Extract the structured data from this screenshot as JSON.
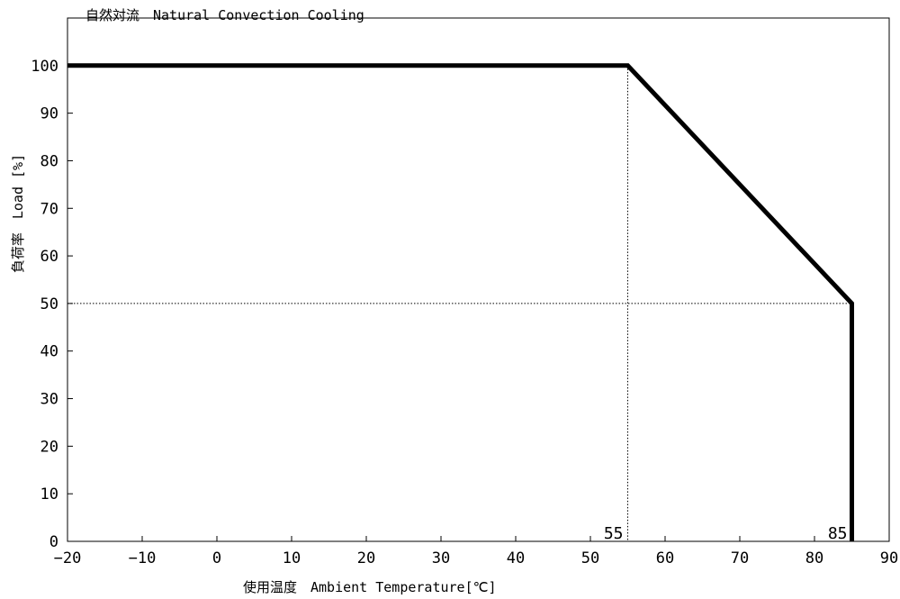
{
  "chart_data": {
    "type": "line",
    "title": "自然対流　Natural Convection Cooling",
    "xlabel": "使用温度　Ambient Temperature[℃]",
    "ylabel": "負荷率　Load [%]",
    "xlim": [
      -20,
      90
    ],
    "ylim": [
      0,
      110
    ],
    "xticks": [
      -20,
      -10,
      0,
      10,
      20,
      30,
      40,
      50,
      60,
      70,
      80,
      90
    ],
    "yticks": [
      0,
      10,
      20,
      30,
      40,
      50,
      60,
      70,
      80,
      90,
      100
    ],
    "x_tick_labels": [
      "−20",
      "−10",
      "0",
      "10",
      "20",
      "30",
      "40",
      "50",
      "60",
      "70",
      "80",
      "90"
    ],
    "y_tick_labels": [
      "0",
      "10",
      "20",
      "30",
      "40",
      "50",
      "60",
      "70",
      "80",
      "90",
      "100"
    ],
    "grid": false,
    "series": [
      {
        "x": [
          -20,
          55,
          85,
          85
        ],
        "y": [
          100,
          100,
          50,
          0
        ]
      }
    ],
    "reference_lines": [
      {
        "orientation": "vertical",
        "value": 55,
        "style": "dotted"
      },
      {
        "orientation": "horizontal",
        "value": 50,
        "style": "dotted"
      }
    ],
    "annotations": [
      {
        "text": "55",
        "x": 55,
        "y": 0
      },
      {
        "text": "85",
        "x": 85,
        "y": 0
      }
    ]
  }
}
